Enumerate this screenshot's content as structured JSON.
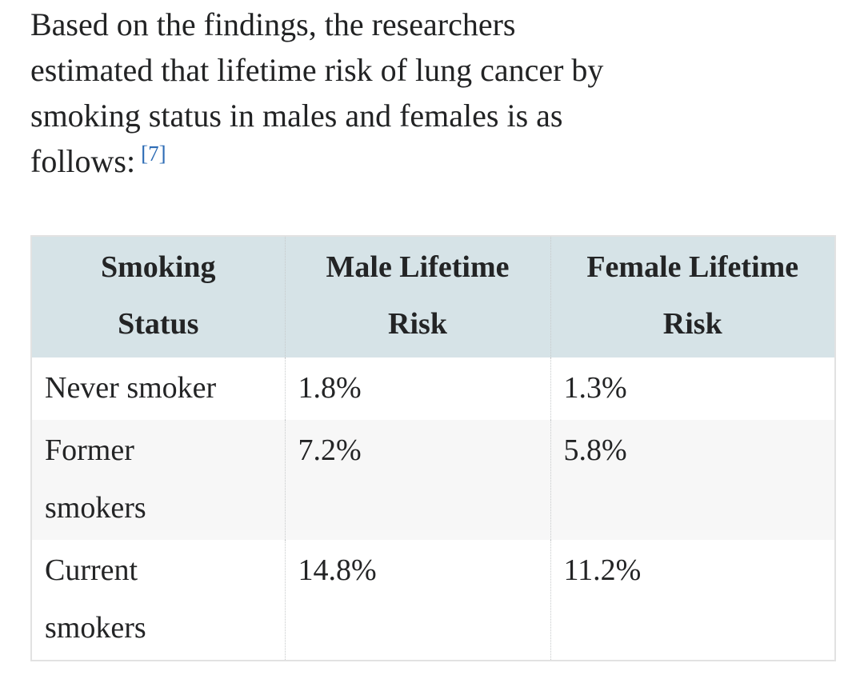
{
  "article": {
    "paragraph": {
      "full_text": "Based on the findings, the researchers estimated that lifetime risk of lung cancer by smoking status in males and females is as follows:",
      "lines": [
        "Based on the findings, the researchers",
        "estimated that lifetime risk of lung cancer by",
        "smoking status in males and females is as",
        "follows:"
      ],
      "citation": "[7]"
    },
    "table": {
      "headers": [
        "Smoking Status",
        "Male Lifetime Risk",
        "Female Lifetime Risk"
      ],
      "rows": [
        [
          "Never smoker",
          "1.8%",
          "1.3%"
        ],
        [
          "Former smokers",
          "7.2%",
          "5.8%"
        ],
        [
          "Current smokers",
          "14.8%",
          "11.2%"
        ]
      ]
    }
  },
  "colors": {
    "page_background": "#ffffff",
    "body_text": "#222324",
    "citation_link": "#2d6cb5",
    "table_header_background": "#d6e3e7",
    "table_alt_row_background": "#f7f7f7",
    "table_outer_border": "#e2e2e2",
    "table_column_divider": "#c6c9ca"
  }
}
